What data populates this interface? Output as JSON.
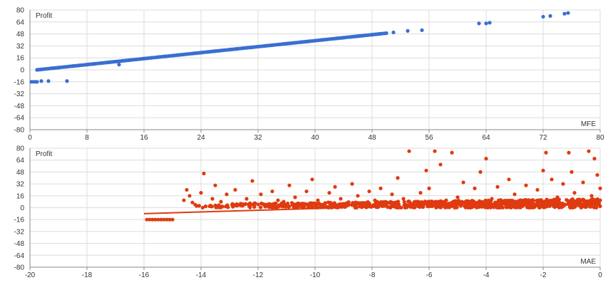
{
  "colors": {
    "mfe_series": "#3a6fd0",
    "mae_series": "#e03a10",
    "grid": "#dcdcdc",
    "axis": "#888888",
    "text": "#333333"
  },
  "chart_data": [
    {
      "type": "scatter",
      "ylabel": "Profit",
      "xlabel": "MFE",
      "xlim": [
        0,
        80
      ],
      "ylim": [
        -80,
        80
      ],
      "x_ticks": [
        0,
        8,
        16,
        24,
        32,
        40,
        48,
        56,
        64,
        72,
        80
      ],
      "y_ticks": [
        80,
        64,
        48,
        32,
        16,
        0,
        -16,
        -32,
        -48,
        -64,
        -80
      ],
      "x_tick_labels": [
        "0",
        "8",
        "16",
        "24",
        "32",
        "40",
        "48",
        "56",
        "64",
        "72",
        "80"
      ],
      "y_tick_labels": [
        "80",
        "64",
        "48",
        "32",
        "16",
        "0",
        "-16",
        "-32",
        "-48",
        "-64",
        "-80"
      ],
      "grid": true,
      "series": [
        {
          "points": [
            [
              0.2,
              -16
            ],
            [
              0.5,
              -16
            ],
            [
              0.8,
              -16
            ],
            [
              1.0,
              -16
            ],
            [
              1.6,
              -15
            ],
            [
              2.6,
              -15
            ],
            [
              5.2,
              -15
            ],
            [
              1.0,
              0
            ],
            [
              1.5,
              0.5
            ],
            [
              2,
              1
            ],
            [
              3,
              2
            ],
            [
              4,
              3
            ],
            [
              5,
              4
            ],
            [
              6,
              5
            ],
            [
              7,
              6
            ],
            [
              8,
              7
            ],
            [
              9,
              8
            ],
            [
              10,
              9
            ],
            [
              11,
              10
            ],
            [
              12,
              11
            ],
            [
              12.5,
              7
            ],
            [
              13,
              12
            ],
            [
              14,
              13
            ],
            [
              15,
              14
            ],
            [
              16,
              15
            ],
            [
              17,
              16
            ],
            [
              18,
              17
            ],
            [
              19,
              18
            ],
            [
              20,
              19
            ],
            [
              21,
              20
            ],
            [
              22,
              21
            ],
            [
              23,
              22
            ],
            [
              24,
              23
            ],
            [
              25,
              24
            ],
            [
              26,
              25
            ],
            [
              27,
              26
            ],
            [
              28,
              27
            ],
            [
              29,
              28
            ],
            [
              30,
              29
            ],
            [
              31,
              30
            ],
            [
              32,
              31
            ],
            [
              33,
              32
            ],
            [
              34,
              33
            ],
            [
              35,
              34
            ],
            [
              36,
              35
            ],
            [
              37,
              36
            ],
            [
              38,
              37
            ],
            [
              39,
              38
            ],
            [
              40,
              39
            ],
            [
              41,
              40
            ],
            [
              42,
              41
            ],
            [
              43,
              42
            ],
            [
              44,
              43
            ],
            [
              45,
              44
            ],
            [
              46,
              45
            ],
            [
              47,
              46
            ],
            [
              48,
              47
            ],
            [
              49,
              48
            ],
            [
              50,
              49
            ],
            [
              51,
              50
            ],
            [
              53,
              52
            ],
            [
              55,
              53
            ],
            [
              63,
              62
            ],
            [
              64,
              62
            ],
            [
              64.5,
              63
            ],
            [
              72,
              71
            ],
            [
              73,
              72
            ],
            [
              75,
              75
            ],
            [
              75.5,
              76
            ]
          ]
        }
      ]
    },
    {
      "type": "scatter",
      "ylabel": "Profit",
      "xlabel": "MAE",
      "xlim": [
        -20,
        0
      ],
      "ylim": [
        -80,
        80
      ],
      "x_ticks": [
        -20,
        -18,
        -16,
        -14,
        -12,
        -10,
        -8,
        -6,
        -4,
        -2,
        0
      ],
      "y_ticks": [
        80,
        64,
        48,
        32,
        16,
        0,
        -16,
        -32,
        -48,
        -64,
        -80
      ],
      "x_tick_labels": [
        "-20",
        "-18",
        "-16",
        "-14",
        "-12",
        "-10",
        "-8",
        "-6",
        "-4",
        "-2",
        "0"
      ],
      "y_tick_labels": [
        "80",
        "64",
        "48",
        "32",
        "16",
        "0",
        "-16",
        "-32",
        "-48",
        "-64",
        "-80"
      ],
      "grid": true,
      "trendline": [
        [
          -16,
          -8
        ],
        [
          -9,
          0
        ]
      ],
      "series": [
        {
          "points": [
            [
              -15.9,
              -16
            ],
            [
              -15.8,
              -16
            ],
            [
              -15.7,
              -16
            ],
            [
              -15.6,
              -16
            ],
            [
              -15.5,
              -16
            ],
            [
              -15.4,
              -16
            ],
            [
              -15.3,
              -16
            ],
            [
              -15.2,
              -16
            ],
            [
              -15.1,
              -16
            ],
            [
              -15.0,
              -16
            ],
            [
              -14.6,
              10
            ],
            [
              -14.5,
              24
            ],
            [
              -14.4,
              16
            ],
            [
              -14.3,
              7
            ],
            [
              -14.2,
              4
            ],
            [
              -14.0,
              20
            ],
            [
              -13.9,
              46
            ],
            [
              -13.7,
              2
            ],
            [
              -13.6,
              12
            ],
            [
              -13.5,
              30
            ],
            [
              -13.3,
              8
            ],
            [
              -13.1,
              18
            ],
            [
              -12.9,
              5
            ],
            [
              -12.8,
              24
            ],
            [
              -12.6,
              3
            ],
            [
              -12.4,
              12
            ],
            [
              -12.2,
              36
            ],
            [
              -12.1,
              6
            ],
            [
              -11.9,
              18
            ],
            [
              -11.7,
              4
            ],
            [
              -11.5,
              22
            ],
            [
              -11.3,
              10
            ],
            [
              -11.1,
              8
            ],
            [
              -10.9,
              30
            ],
            [
              -10.7,
              14
            ],
            [
              -10.5,
              5
            ],
            [
              -10.3,
              22
            ],
            [
              -10.1,
              38
            ],
            [
              -9.9,
              10
            ],
            [
              -9.7,
              4
            ],
            [
              -9.5,
              20
            ],
            [
              -9.3,
              28
            ],
            [
              -9.1,
              12
            ],
            [
              -8.9,
              6
            ],
            [
              -8.7,
              32
            ],
            [
              -8.5,
              16
            ],
            [
              -8.3,
              4
            ],
            [
              -8.1,
              22
            ],
            [
              -7.9,
              10
            ],
            [
              -7.7,
              26
            ],
            [
              -7.5,
              6
            ],
            [
              -7.3,
              18
            ],
            [
              -7.1,
              40
            ],
            [
              -6.9,
              12
            ],
            [
              -6.7,
              76
            ],
            [
              -6.5,
              4
            ],
            [
              -6.3,
              20
            ],
            [
              -6.1,
              50
            ],
            [
              -6.0,
              26
            ],
            [
              -5.8,
              76
            ],
            [
              -5.6,
              58
            ],
            [
              -5.4,
              10
            ],
            [
              -5.2,
              74
            ],
            [
              -5.0,
              14
            ],
            [
              -4.8,
              34
            ],
            [
              -4.6,
              6
            ],
            [
              -4.4,
              26
            ],
            [
              -4.2,
              48
            ],
            [
              -4.0,
              66
            ],
            [
              -3.8,
              12
            ],
            [
              -3.6,
              28
            ],
            [
              -3.4,
              8
            ],
            [
              -3.2,
              38
            ],
            [
              -3.0,
              18
            ],
            [
              -2.8,
              4
            ],
            [
              -2.6,
              30
            ],
            [
              -2.4,
              10
            ],
            [
              -2.2,
              24
            ],
            [
              -2.0,
              50
            ],
            [
              -1.9,
              74
            ],
            [
              -1.7,
              38
            ],
            [
              -1.5,
              14
            ],
            [
              -1.3,
              32
            ],
            [
              -1.1,
              74
            ],
            [
              -1.0,
              48
            ],
            [
              -0.9,
              20
            ],
            [
              -0.7,
              8
            ],
            [
              -0.6,
              34
            ],
            [
              -0.4,
              76
            ],
            [
              -0.3,
              16
            ],
            [
              -0.2,
              66
            ],
            [
              -0.1,
              44
            ],
            [
              0,
              26
            ],
            [
              0,
              10
            ],
            [
              0,
              2
            ]
          ],
          "dense_band": {
            "x_range": [
              -14.5,
              0
            ],
            "y_range": [
              0,
              12
            ]
          }
        }
      ]
    }
  ]
}
